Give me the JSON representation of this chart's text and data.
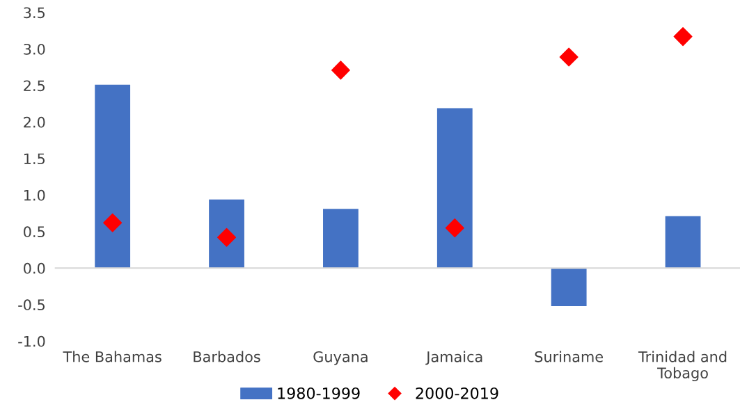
{
  "chart_data": {
    "type": "bar",
    "categories": [
      "The Bahamas",
      "Barbados",
      "Guyana",
      "Jamaica",
      "Suriname",
      "Trinidad and\nTobago"
    ],
    "series": [
      {
        "name": "1980-1999",
        "color": "#4472c4",
        "values": [
          2.51,
          0.94,
          0.81,
          2.19,
          -0.52,
          0.71
        ]
      },
      {
        "name": "2000-2019",
        "type": "scatter",
        "color": "#ff0000",
        "marker": "diamond",
        "values": [
          0.62,
          0.42,
          2.71,
          0.55,
          2.89,
          3.17
        ]
      }
    ],
    "ylim": [
      -1.0,
      3.5
    ],
    "yticks": [
      {
        "value": -1.0,
        "label": "-1.0"
      },
      {
        "value": -0.5,
        "label": "-0.5"
      },
      {
        "value": 0.0,
        "label": "0.0"
      },
      {
        "value": 0.5,
        "label": "0.5"
      },
      {
        "value": 1.0,
        "label": "1.0"
      },
      {
        "value": 1.5,
        "label": "1.5"
      },
      {
        "value": 2.0,
        "label": "2.0"
      },
      {
        "value": 2.5,
        "label": "2.5"
      },
      {
        "value": 3.0,
        "label": "3.0"
      },
      {
        "value": 3.5,
        "label": "3.5"
      }
    ],
    "legend": "bottom"
  }
}
